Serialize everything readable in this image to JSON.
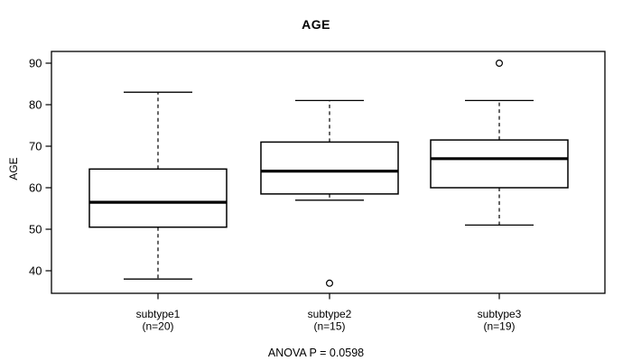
{
  "chart_data": {
    "type": "boxplot",
    "title": "AGE",
    "ylabel": "AGE",
    "xlabel": "",
    "annotation": "ANOVA P = 0.0598",
    "y_ticks": [
      40,
      50,
      60,
      70,
      80,
      90
    ],
    "ylim": [
      34.5,
      92.8
    ],
    "grid": false,
    "legend": "none",
    "groups": [
      {
        "label": "subtype1",
        "count_label": "(n=20)",
        "n": 20,
        "stats": {
          "whisker_low": 38,
          "q1": 50.5,
          "median": 56.5,
          "q3": 64.5,
          "whisker_high": 83
        },
        "outliers": []
      },
      {
        "label": "subtype2",
        "count_label": "(n=15)",
        "n": 15,
        "stats": {
          "whisker_low": 57,
          "q1": 58.5,
          "median": 64,
          "q3": 71,
          "whisker_high": 81
        },
        "outliers": [
          37
        ]
      },
      {
        "label": "subtype3",
        "count_label": "(n=19)",
        "n": 19,
        "stats": {
          "whisker_low": 51,
          "q1": 60,
          "median": 67,
          "q3": 71.5,
          "whisker_high": 81
        },
        "outliers": [
          90
        ]
      }
    ],
    "colors": {
      "line": "#000000",
      "median": "#000000",
      "box_fill": "#ffffff",
      "background": "#ffffff"
    }
  }
}
